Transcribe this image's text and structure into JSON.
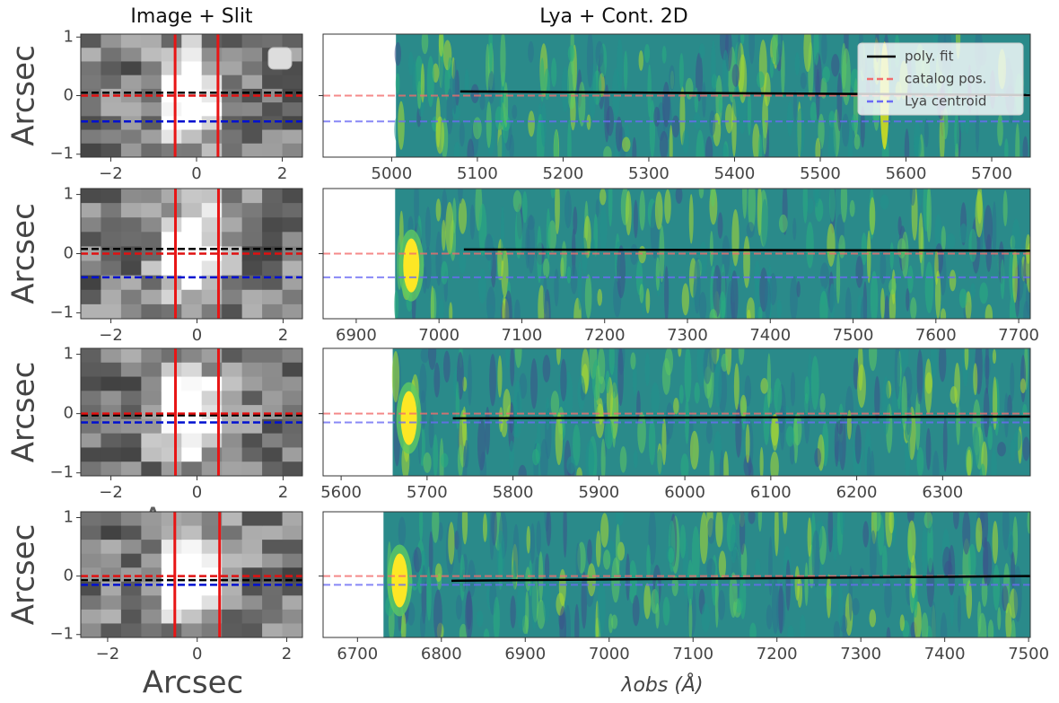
{
  "chart_data": [
    {
      "type": "image",
      "title": "Image + Slit",
      "ylabel": "Arcsec",
      "xlabel": "Arcsec",
      "xlim": [
        -2.7,
        2.47
      ],
      "xticks": [
        {
          "value": -2,
          "label": "−2"
        },
        0,
        2
      ],
      "ylim": [
        -1.05,
        1.05
      ],
      "yticks": [
        {
          "value": -1,
          "label": "−1"
        },
        0,
        1
      ],
      "slit": [
        -0.5,
        0.5
      ],
      "catalog_y": 0,
      "fit_y": 0.05,
      "lya_y": -0.44
    },
    {
      "type": "spectrum2d",
      "title": "Lya + Cont. 2D",
      "xlim": [
        4920,
        5745
      ],
      "xticks": [
        5000,
        5100,
        5200,
        5300,
        5400,
        5500,
        5600,
        5700
      ],
      "ylim": [
        -1.05,
        1.05
      ],
      "data_start": 5005,
      "catalog_y": 0,
      "lya_y": -0.44,
      "poly_fit": {
        "x": [
          5080,
          5745
        ],
        "y": [
          0.07,
          0.01
        ]
      },
      "legend": {
        "loc": "upper right",
        "entries": [
          "poly. fit",
          "catalog pos.",
          "Lya centroid"
        ]
      }
    },
    {
      "type": "image",
      "ylabel": "Arcsec",
      "xlabel": "Arcsec",
      "xlim": [
        -2.7,
        2.45
      ],
      "xticks": [
        {
          "value": -2,
          "label": "−2"
        },
        0,
        2
      ],
      "ylim": [
        -1.1,
        1.1
      ],
      "yticks": [
        {
          "value": -1,
          "label": "−1"
        },
        0,
        1
      ],
      "slit": [
        -0.5,
        0.5
      ],
      "catalog_y": 0,
      "fit_y": 0.08,
      "lya_y": -0.4
    },
    {
      "type": "spectrum2d",
      "xlim": [
        6860,
        7714
      ],
      "xticks": [
        6900,
        7000,
        7100,
        7200,
        7300,
        7400,
        7500,
        7600,
        7700
      ],
      "ylim": [
        -1.1,
        1.1
      ],
      "data_start": 6947,
      "catalog_y": 0,
      "lya_y": -0.4,
      "poly_fit": {
        "x": [
          7030,
          7714
        ],
        "y": [
          0.07,
          0.05
        ]
      }
    },
    {
      "type": "image",
      "ylabel": "Arcsec",
      "xlabel": "Arcsec",
      "xlim": [
        -2.7,
        2.45
      ],
      "xticks": [
        {
          "value": -2,
          "label": "−2"
        },
        0,
        2
      ],
      "ylim": [
        -1.05,
        1.1
      ],
      "yticks": [
        {
          "value": -1,
          "label": "−1"
        },
        0,
        1
      ],
      "slit": [
        -0.5,
        0.5
      ],
      "catalog_y": 0,
      "fit_y": -0.03,
      "lya_y": -0.15
    },
    {
      "type": "spectrum2d",
      "xlim": [
        5579,
        6402
      ],
      "xticks": [
        5600,
        5700,
        5800,
        5900,
        6000,
        6100,
        6200,
        6300
      ],
      "ylim": [
        -1.05,
        1.1
      ],
      "data_start": 5660,
      "catalog_y": 0,
      "lya_y": -0.15,
      "poly_fit": {
        "x": [
          5730,
          6402
        ],
        "y": [
          -0.08,
          -0.05
        ]
      }
    },
    {
      "type": "image",
      "ylabel": "Arcsec",
      "xlabel": "Arcsec",
      "xlim": [
        -2.6,
        2.35
      ],
      "xticks": [
        {
          "value": -2,
          "label": "−2"
        },
        0,
        2
      ],
      "ylim": [
        -1.05,
        1.1
      ],
      "yticks": [
        {
          "value": -1,
          "label": "−1"
        },
        0,
        1
      ],
      "slit": [
        -0.5,
        0.5
      ],
      "catalog_y": 0,
      "fit_y": -0.07,
      "lya_y": -0.15
    },
    {
      "type": "spectrum2d",
      "xlabel": "λobs (Å)",
      "xlim": [
        6659,
        7502
      ],
      "xticks": [
        6700,
        6800,
        6900,
        7000,
        7100,
        7200,
        7300,
        7400,
        7500
      ],
      "ylim": [
        -1.05,
        1.1
      ],
      "data_start": 6731,
      "catalog_y": 0,
      "lya_y": -0.15,
      "poly_fit": {
        "x": [
          6812,
          7502
        ],
        "y": [
          -0.08,
          0.0
        ]
      }
    }
  ]
}
